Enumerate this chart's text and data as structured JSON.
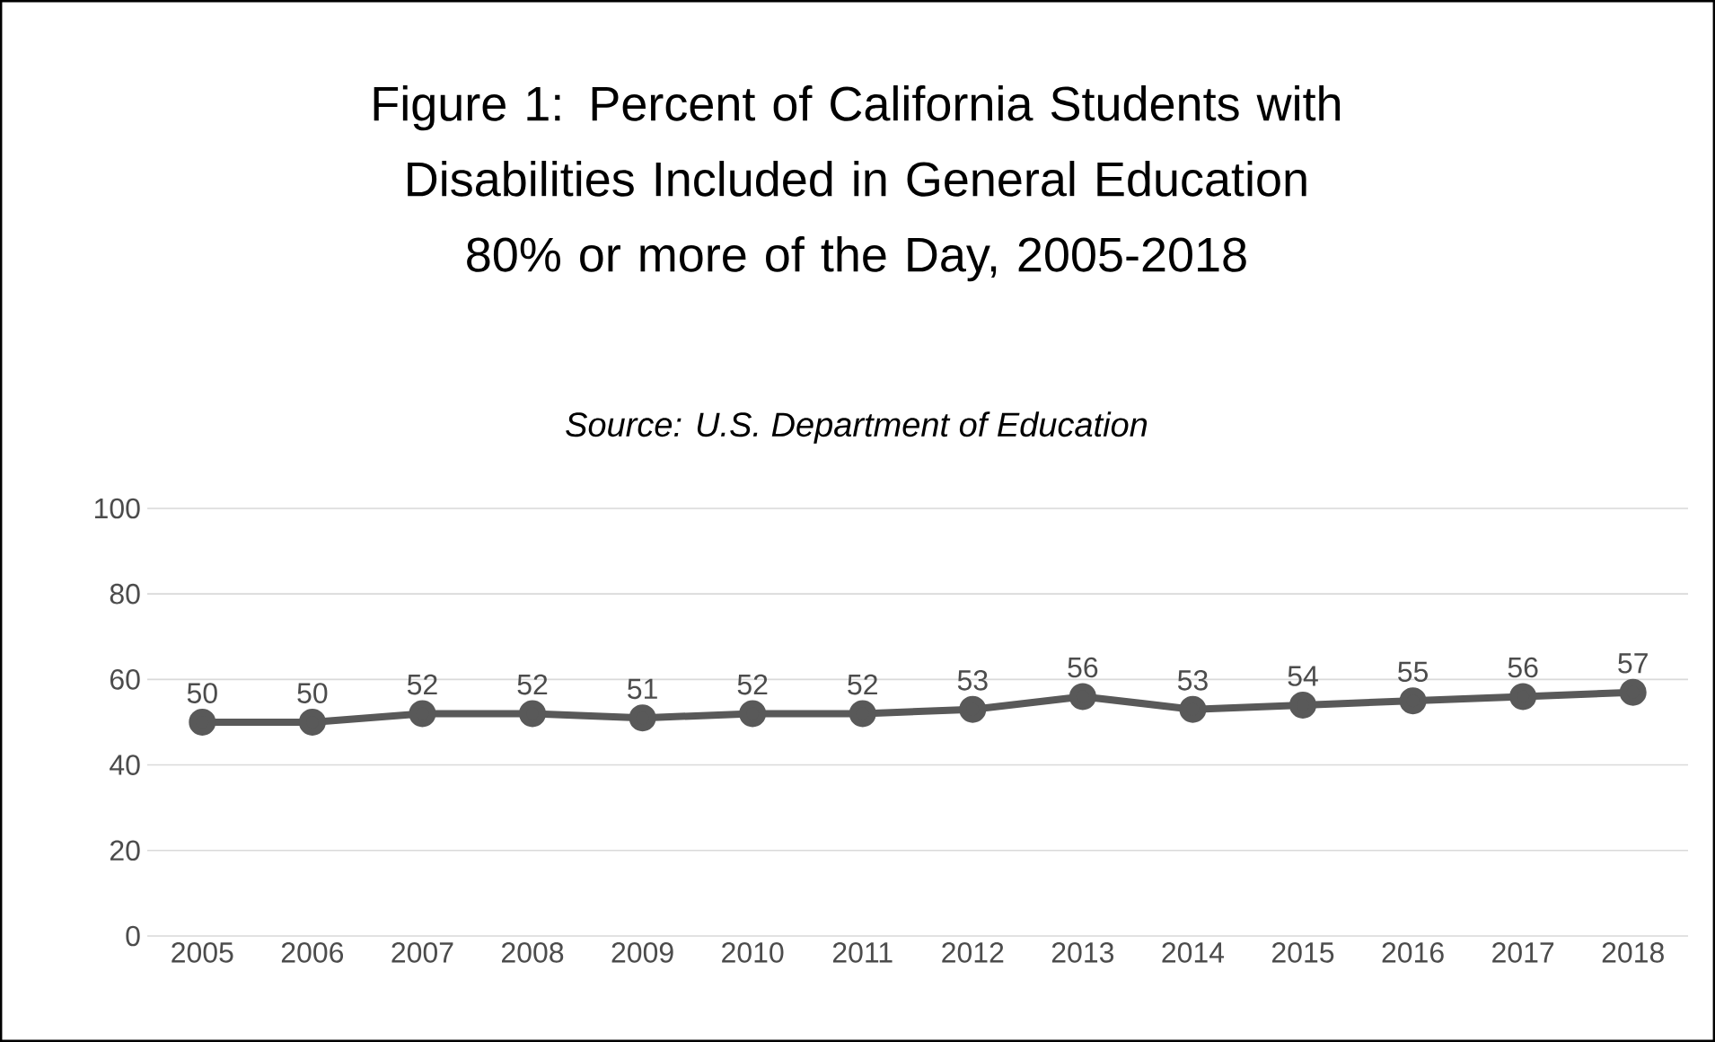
{
  "chart_data": {
    "type": "line",
    "title": "Figure 1:  Percent of California Students with Disabilities Included in General Education 80% or more of the Day, 2005-2018",
    "subtitle": "Source:  U.S. Department of Education",
    "categories": [
      "2005",
      "2006",
      "2007",
      "2008",
      "2009",
      "2010",
      "2011",
      "2012",
      "2013",
      "2014",
      "2015",
      "2016",
      "2017",
      "2018"
    ],
    "series": [
      {
        "color": "#595959",
        "values": [
          50,
          50,
          52,
          52,
          51,
          52,
          52,
          53,
          56,
          53,
          54,
          55,
          56,
          57
        ]
      }
    ],
    "ylim": [
      0,
      100
    ],
    "yticks": [
      0,
      20,
      40,
      60,
      80,
      100
    ],
    "grid": "y",
    "marker": "circle",
    "line_style": "solid",
    "data_labels": true
  }
}
